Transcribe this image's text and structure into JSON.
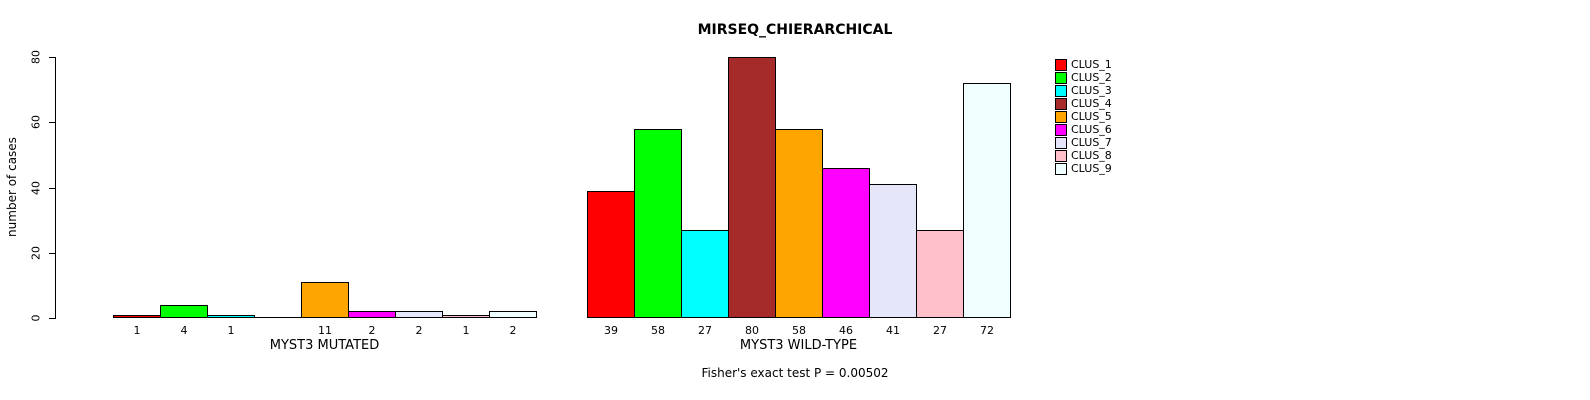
{
  "chart_data": {
    "type": "bar",
    "title": "MIRSEQ_CHIERARCHICAL",
    "ylabel": "number of cases",
    "xlabel": "",
    "ylim": [
      0,
      80
    ],
    "yticks": [
      0,
      20,
      40,
      60,
      80
    ],
    "grid": false,
    "legend_position": "right",
    "legend": [
      "CLUS_1",
      "CLUS_2",
      "CLUS_3",
      "CLUS_4",
      "CLUS_5",
      "CLUS_6",
      "CLUS_7",
      "CLUS_8",
      "CLUS_9"
    ],
    "colors": [
      "#ff0000",
      "#00ff00",
      "#00ffff",
      "#a52a2a",
      "#ffa500",
      "#ff00ff",
      "#e6e6fa",
      "#ffc0cb",
      "#f0ffff"
    ],
    "groups": [
      {
        "label": "MYST3 MUTATED",
        "values": [
          1,
          4,
          1,
          0,
          11,
          2,
          2,
          1,
          2
        ],
        "bar_labels": [
          "1",
          "4",
          "1",
          "",
          "11",
          "2",
          "2",
          "1",
          "2"
        ]
      },
      {
        "label": "MYST3 WILD-TYPE",
        "values": [
          39,
          58,
          27,
          80,
          58,
          46,
          41,
          27,
          72
        ],
        "bar_labels": [
          "39",
          "58",
          "27",
          "80",
          "58",
          "46",
          "41",
          "27",
          "72"
        ]
      }
    ],
    "footnote": "Fisher's exact test P = 0.00502"
  }
}
